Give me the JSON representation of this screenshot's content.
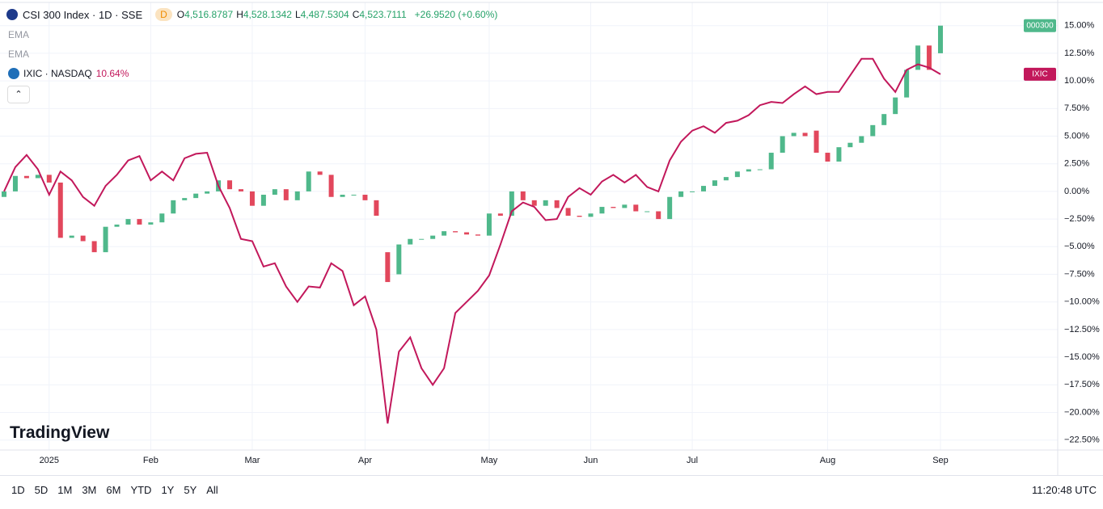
{
  "header": {
    "title": "CSI 300 Index · 1D · SSE",
    "badge": "D",
    "ohlc": [
      {
        "key": "O",
        "value": "4,516.8787"
      },
      {
        "key": "H",
        "value": "4,528.1342"
      },
      {
        "key": "L",
        "value": "4,487.5304"
      },
      {
        "key": "C",
        "value": "4,523.7111"
      }
    ],
    "change": "+26.9520 (+0.60%)"
  },
  "indicators": [
    "EMA",
    "EMA"
  ],
  "compare": {
    "name": "IXIC · NASDAQ",
    "change": "10.64%"
  },
  "chart_data": {
    "type": "candlestick",
    "categories": [
      null,
      null,
      null,
      null,
      "2025",
      null,
      null,
      null,
      null,
      null,
      null,
      null,
      null,
      "Feb",
      null,
      null,
      null,
      null,
      null,
      null,
      null,
      null,
      "Mar",
      null,
      null,
      null,
      null,
      null,
      null,
      null,
      null,
      null,
      "Apr",
      null,
      null,
      null,
      null,
      null,
      null,
      null,
      null,
      null,
      null,
      "May",
      null,
      null,
      null,
      null,
      null,
      null,
      null,
      null,
      "Jun",
      null,
      null,
      null,
      null,
      null,
      null,
      null,
      null,
      "Jul",
      null,
      null,
      null,
      null,
      null,
      null,
      null,
      null,
      null,
      null,
      null,
      "Aug",
      null,
      null,
      null,
      null,
      null,
      null,
      null,
      null,
      null,
      "Sep"
    ],
    "series": [
      {
        "name": "000300",
        "type": "candlestick",
        "up_color": "#4fb88b",
        "down_color": "#e2475c",
        "open": [
          -0.5,
          0,
          1.4,
          1.2,
          1.5,
          0.8,
          -4.2,
          -4.0,
          -4.5,
          -5.5,
          -3.2,
          -3.0,
          -2.5,
          -3.0,
          -2.8,
          -2.0,
          -0.8,
          -0.6,
          -0.2,
          0,
          1.0,
          0.2,
          0,
          -1.3,
          -0.3,
          0.2,
          -0.8,
          0,
          1.8,
          1.5,
          -0.5,
          -0.3,
          -0.3,
          -0.8,
          -5.5,
          -7.5,
          -4.8,
          -4.3,
          -4.3,
          -4.0,
          -3.6,
          -3.7,
          -3.9,
          -4.0,
          -2.0,
          -2.2,
          0,
          -0.8,
          -1.3,
          -0.8,
          -1.5,
          -2.2,
          -2.3,
          -2.0,
          -1.4,
          -1.5,
          -1.2,
          -1.8,
          -1.8,
          -2.5,
          -0.5,
          0,
          0,
          0.5,
          1.0,
          1.3,
          1.8,
          2.0,
          2.0,
          3.5,
          5.0,
          5.3,
          5.5,
          3.5,
          2.7,
          4.0,
          4.4,
          5.0,
          6.0,
          7.0,
          8.5,
          11.0,
          13.2,
          12.5
        ],
        "close": [
          0,
          1.4,
          1.2,
          1.5,
          0.8,
          -4.2,
          -4.0,
          -4.5,
          -5.5,
          -3.2,
          -3.0,
          -2.5,
          -3.0,
          -2.8,
          -2.0,
          -0.8,
          -0.6,
          -0.2,
          0,
          1.0,
          0.2,
          0,
          -1.3,
          -0.3,
          0.2,
          -0.8,
          0,
          1.8,
          1.5,
          -0.5,
          -0.3,
          -0.3,
          -0.8,
          -2.2,
          -8.2,
          -4.8,
          -4.3,
          -4.3,
          -4.0,
          -3.6,
          -3.7,
          -3.9,
          -4.0,
          -2.0,
          -2.2,
          0,
          -0.8,
          -1.3,
          -0.8,
          -1.5,
          -2.2,
          -2.3,
          -2.0,
          -1.4,
          -1.5,
          -1.2,
          -1.8,
          -1.8,
          -2.5,
          -0.5,
          0,
          0,
          0.5,
          1.0,
          1.3,
          1.8,
          2.0,
          2.0,
          3.5,
          5.0,
          5.3,
          5.0,
          3.5,
          2.7,
          4.0,
          4.4,
          5.0,
          6.0,
          7.0,
          8.5,
          11.0,
          13.2,
          11.0,
          15.0
        ]
      },
      {
        "name": "IXIC",
        "type": "line",
        "color": "#c2185b",
        "values": [
          0,
          2.2,
          3.3,
          2.0,
          -0.3,
          1.8,
          1.0,
          -0.5,
          -1.3,
          0.5,
          1.5,
          2.8,
          3.2,
          1.0,
          1.8,
          1.0,
          3.0,
          3.4,
          3.5,
          0.5,
          -1.5,
          -4.3,
          -4.5,
          -6.8,
          -6.5,
          -8.6,
          -10.0,
          -8.6,
          -8.7,
          -6.5,
          -7.2,
          -10.3,
          -9.5,
          -12.5,
          -21.0,
          -14.5,
          -13.2,
          -16.0,
          -17.5,
          -16.0,
          -11.0,
          -10.0,
          -9.0,
          -7.6,
          -4.8,
          -1.8,
          -1.0,
          -1.4,
          -2.6,
          -2.5,
          -0.5,
          0.3,
          -0.3,
          0.9,
          1.5,
          0.8,
          1.5,
          0.4,
          0,
          2.8,
          4.5,
          5.5,
          5.9,
          5.3,
          6.2,
          6.4,
          6.9,
          7.8,
          8.1,
          8.0,
          8.8,
          9.5,
          8.8,
          9.0,
          9.0,
          10.5,
          12.0,
          12.0,
          10.2,
          9.0,
          11.0,
          11.5,
          11.2,
          10.6
        ]
      }
    ],
    "ylim": [
      -23.4,
      17.1
    ],
    "yticks": [
      {
        "value": 15,
        "label": "15.00%"
      },
      {
        "value": 12.5,
        "label": "12.50%"
      },
      {
        "value": 10,
        "label": "10.00%"
      },
      {
        "value": 7.5,
        "label": "7.50%"
      },
      {
        "value": 5,
        "label": "5.00%"
      },
      {
        "value": 2.5,
        "label": "2.50%"
      },
      {
        "value": 0,
        "label": "0.00%"
      },
      {
        "value": -2.5,
        "label": "−2.50%"
      },
      {
        "value": -5,
        "label": "−5.00%"
      },
      {
        "value": -7.5,
        "label": "−7.50%"
      },
      {
        "value": -10,
        "label": "−10.00%"
      },
      {
        "value": -12.5,
        "label": "−12.50%"
      },
      {
        "value": -15,
        "label": "−15.00%"
      },
      {
        "value": -17.5,
        "label": "−17.50%"
      },
      {
        "value": -20,
        "label": "−20.00%"
      },
      {
        "value": -22.5,
        "label": "−22.50%"
      }
    ],
    "grid": true
  },
  "logo": "TradingView",
  "ranges": [
    "1D",
    "5D",
    "1M",
    "3M",
    "6M",
    "YTD",
    "1Y",
    "5Y",
    "All"
  ],
  "time": "11:20:48 UTC"
}
